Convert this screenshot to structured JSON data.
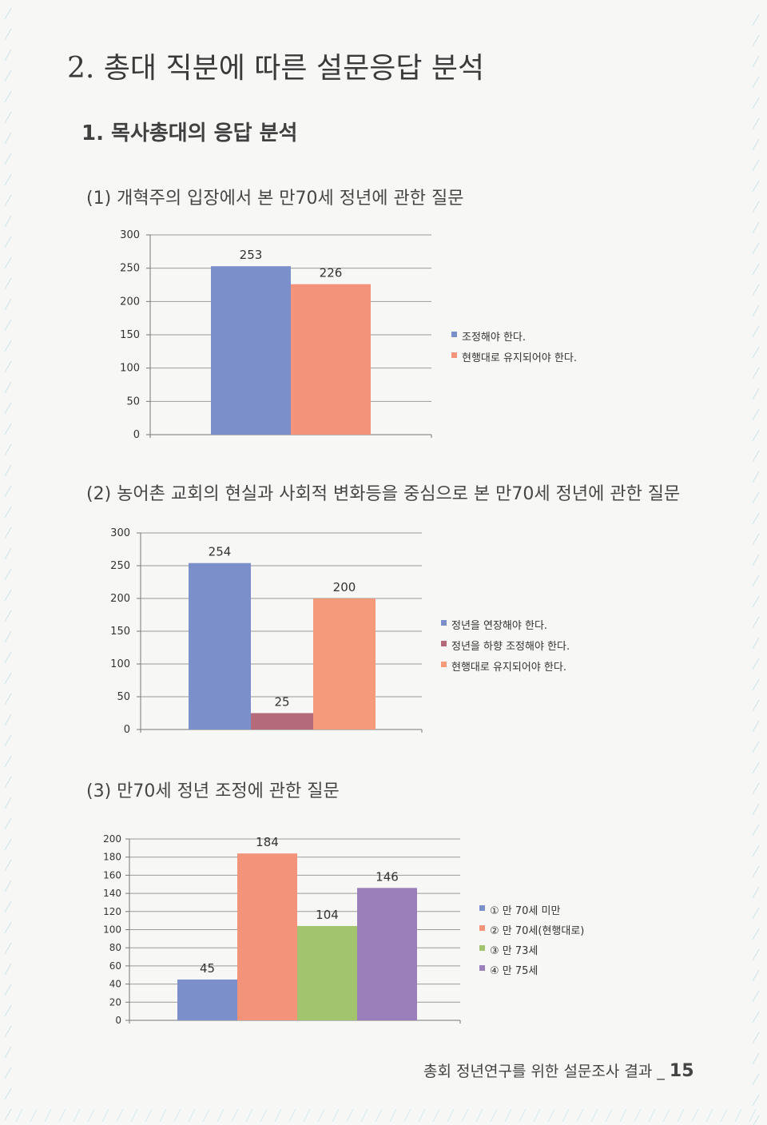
{
  "page": {
    "section_title": "2. 총대 직분에 따른 설문응답 분석",
    "subsection_title": "1. 목사총대의 응답 분석",
    "footer_text": "총회 정년연구를 위한 설문조사 결과 _",
    "page_number": "15"
  },
  "questions": [
    {
      "heading": "(1) 개혁주의 입장에서 본 만70세 정년에 관한 질문"
    },
    {
      "heading": "(2) 농어촌 교회의 현실과 사회적 변화등을 중심으로 본 만70세 정년에 관한 질문"
    },
    {
      "heading": "(3) 만70세 정년 조정에 관한 질문"
    }
  ],
  "chart_data": [
    {
      "type": "bar",
      "title": "",
      "categories": [
        "조정해야 한다.",
        "현행대로 유지되어야 한다."
      ],
      "values": [
        253,
        226
      ],
      "colors": [
        "#7b8fcb",
        "#f3937a"
      ],
      "ylim": [
        0,
        300
      ],
      "yticks": [
        0,
        50,
        100,
        150,
        200,
        250,
        300
      ],
      "legend": "right",
      "grid": true
    },
    {
      "type": "bar",
      "title": "",
      "categories": [
        "정년을 연장해야 한다.",
        "정년을 하향 조정해야 한다.",
        "현행대로 유지되어야 한다."
      ],
      "values": [
        254,
        25,
        200
      ],
      "colors": [
        "#7b8fcb",
        "#b56a7a",
        "#f59a7a"
      ],
      "ylim": [
        0,
        300
      ],
      "yticks": [
        0,
        50,
        100,
        150,
        200,
        250,
        300
      ],
      "legend": "right",
      "grid": true
    },
    {
      "type": "bar",
      "title": "",
      "categories": [
        "① 만 70세 미만",
        "② 만 70세(현행대로)",
        "③ 만 73세",
        "④ 만 75세"
      ],
      "values": [
        45,
        184,
        104,
        146
      ],
      "colors": [
        "#7b8fcb",
        "#f3937a",
        "#a2c46e",
        "#9a7fbb"
      ],
      "ylim": [
        0,
        200
      ],
      "yticks": [
        0,
        20,
        40,
        60,
        80,
        100,
        120,
        140,
        160,
        180,
        200
      ],
      "legend": "right",
      "grid": true
    }
  ]
}
